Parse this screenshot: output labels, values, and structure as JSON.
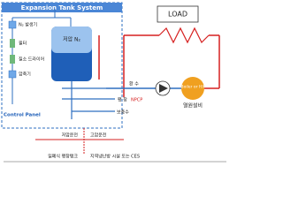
{
  "header": {
    "title": "Expansion Tank System"
  },
  "load": {
    "label": "LOAD"
  },
  "tank": {
    "label": "저압 N₂"
  },
  "left_column": [
    "N₂ 발생기",
    "필터",
    "질소 드라이어",
    "압축기"
  ],
  "pipes": {
    "return": "환 수",
    "expansion": "팽 창",
    "pump": "NPCP",
    "makeup": "보충수"
  },
  "boiler": {
    "label": "Boiler or HX",
    "caption": "열원설비"
  },
  "control_panel": "Control Panel",
  "operation": {
    "low": "저압운전",
    "high": "고압운전"
  },
  "footer": {
    "left": "밀폐식 팽창탱크",
    "right": "지역냉난방 시설 또는 CES"
  }
}
